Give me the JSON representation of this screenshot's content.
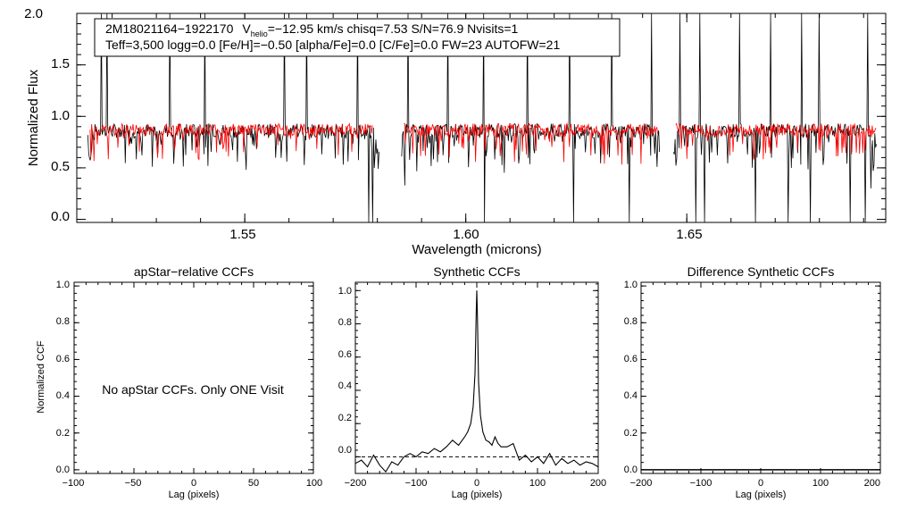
{
  "chart_data": [
    {
      "id": "spectrum",
      "type": "line",
      "title": "",
      "xlabel": "Wavelength (microns)",
      "ylabel": "Normalized Flux",
      "xlim": [
        1.512,
        1.695
      ],
      "ylim": [
        -0.03,
        2.0
      ],
      "xticks": [
        1.55,
        1.6,
        1.65
      ],
      "xtick_labels": [
        "1.55",
        "1.60",
        "1.65"
      ],
      "yticks": [
        0.0,
        0.5,
        1.0,
        1.5,
        2.0
      ],
      "ytick_labels": [
        "0.0",
        "0.5",
        "1.0",
        "1.5",
        "2.0"
      ],
      "info_line1": {
        "star": "2M18021164−1922170",
        "v_symbol": "V",
        "v_sub": "helio",
        "rest": "=−12.95 km/s  chisq=7.53  S/N=76.9  Nvisits=1"
      },
      "info_line2": "Teff=3,500 logg=0.0 [Fe/H]=−0.50 [alpha/Fe]=0.0 [C/Fe]=0.0 FW=23 AUTOFW=21",
      "series": [
        {
          "name": "Observed spectrum",
          "color": "#000000",
          "segments": [
            [
              1.5145,
              1.5805
            ],
            [
              1.5855,
              1.644
            ],
            [
              1.647,
              1.693
            ]
          ],
          "continuum": 0.86,
          "noise": 0.07
        },
        {
          "name": "Synthetic fit",
          "color": "#ff0000",
          "segments": [
            [
              1.515,
              1.579
            ],
            [
              1.586,
              1.6435
            ],
            [
              1.6475,
              1.693
            ]
          ],
          "continuum": 0.87,
          "noise": 0.06
        }
      ],
      "spikes": [
        1.5175,
        1.5188,
        1.533,
        1.541,
        1.559,
        1.564,
        1.5755,
        1.587,
        1.596,
        1.604,
        1.614,
        1.6235,
        1.633,
        1.642,
        1.6485,
        1.653,
        1.662,
        1.669,
        1.676,
        1.68,
        1.691
      ],
      "drops": [
        1.578,
        1.579,
        1.6043,
        1.6243,
        1.637,
        1.6443,
        1.652,
        1.654,
        1.6655,
        1.673,
        1.678,
        1.687,
        1.6903
      ]
    },
    {
      "id": "apstar-ccf",
      "type": "line",
      "title": "apStar−relative CCFs",
      "xlabel": "Lag (pixels)",
      "ylabel": "Normalized CCF",
      "xlim": [
        -100,
        100
      ],
      "ylim": [
        -0.02,
        1.02
      ],
      "xticks": [
        -100,
        -50,
        0,
        50,
        100
      ],
      "xtick_labels": [
        "−100",
        "−50",
        "0",
        "50",
        "100"
      ],
      "yticks": [
        0.0,
        0.2,
        0.4,
        0.6,
        0.8,
        1.0
      ],
      "ytick_labels": [
        "0.0",
        "0.2",
        "0.4",
        "0.6",
        "0.8",
        "1.0"
      ],
      "annotation": "No apStar CCFs.  Only ONE Visit",
      "series": []
    },
    {
      "id": "synthetic-ccf",
      "type": "line",
      "title": "Synthetic CCFs",
      "xlabel": "Lag (pixels)",
      "ylabel": "",
      "xlim": [
        -200,
        200
      ],
      "ylim": [
        -0.1,
        1.05
      ],
      "xticks": [
        -200,
        -100,
        0,
        100,
        200
      ],
      "xtick_labels": [
        "−200",
        "−100",
        "0",
        "100",
        "200"
      ],
      "yticks": [
        0.0,
        0.2,
        0.4,
        0.6,
        0.8,
        1.0
      ],
      "ytick_labels": [
        "0.0",
        "0.2",
        "0.4",
        "0.6",
        "0.8",
        "1.0"
      ],
      "zero_line": 0.0,
      "series": [
        {
          "name": "Synthetic CCF",
          "color": "#000000",
          "x": [
            -200,
            -190,
            -180,
            -170,
            -160,
            -150,
            -140,
            -130,
            -120,
            -110,
            -100,
            -90,
            -80,
            -70,
            -60,
            -50,
            -40,
            -30,
            -20,
            -15,
            -10,
            -6,
            -3,
            -1,
            0,
            1,
            3,
            6,
            10,
            15,
            20,
            25,
            30,
            35,
            40,
            50,
            60,
            70,
            80,
            90,
            100,
            110,
            120,
            130,
            140,
            150,
            160,
            170,
            180,
            190,
            200
          ],
          "y": [
            -0.04,
            -0.02,
            -0.06,
            0.01,
            -0.05,
            -0.09,
            -0.03,
            -0.05,
            0.0,
            0.02,
            0.0,
            0.03,
            0.02,
            0.05,
            0.03,
            0.06,
            0.1,
            0.07,
            0.12,
            0.15,
            0.2,
            0.3,
            0.5,
            0.85,
            1.0,
            0.85,
            0.45,
            0.25,
            0.15,
            0.1,
            0.09,
            0.07,
            0.12,
            0.08,
            0.06,
            0.06,
            0.08,
            -0.02,
            0.01,
            -0.03,
            0.0,
            -0.04,
            0.02,
            -0.05,
            -0.01,
            -0.04,
            -0.02,
            -0.05,
            -0.03,
            -0.04,
            -0.06
          ]
        }
      ]
    },
    {
      "id": "difference-ccf",
      "type": "line",
      "title": "Difference Synthetic CCFs",
      "xlabel": "Lag (pixels)",
      "ylabel": "",
      "xlim": [
        -200,
        200
      ],
      "ylim": [
        -0.02,
        1.02
      ],
      "xticks": [
        -200,
        -100,
        0,
        100,
        200
      ],
      "xtick_labels": [
        "−200",
        "−100",
        "0",
        "100",
        "200"
      ],
      "yticks": [
        0.0,
        0.2,
        0.4,
        0.6,
        0.8,
        1.0
      ],
      "ytick_labels": [
        "0.0",
        "0.2",
        "0.4",
        "0.6",
        "0.8",
        "1.0"
      ],
      "series": []
    }
  ]
}
